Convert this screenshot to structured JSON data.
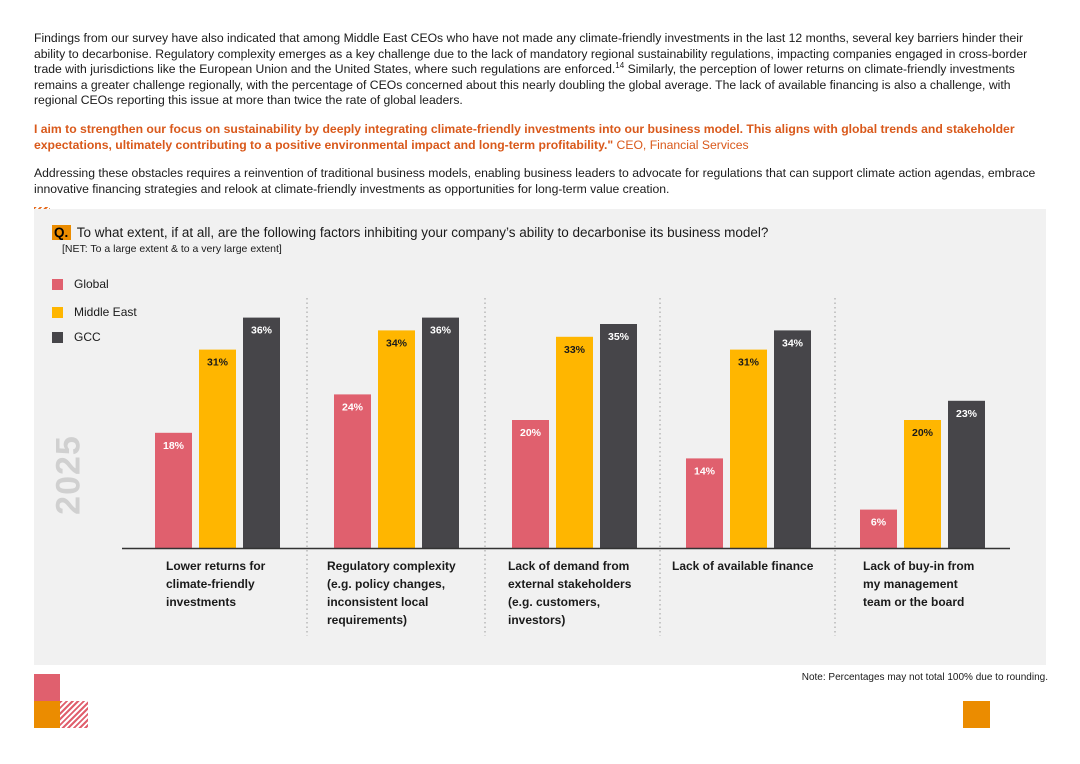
{
  "paragraph1": "Findings from our survey have also indicated that among Middle East CEOs who have not made any climate-friendly investments in the last 12 months, several key barriers hinder their ability to decarbonise. Regulatory complexity emerges as a key challenge due to the lack of mandatory regional sustainability regulations, impacting companies engaged in cross-border trade with jurisdictions like the European Union and the United States, where such regulations are enforced.",
  "footnote_ref": "14",
  "paragraph1_cont": " Similarly, the perception of lower returns on climate-friendly investments remains a greater challenge regionally, with the percentage of CEOs concerned about this nearly doubling the global average. The lack of available financing is also a challenge, with regional CEOs reporting this issue at more than twice the rate of global leaders.",
  "quote": {
    "text": "I aim to strengthen our focus on sustainability by deeply integrating climate-friendly investments into our business model. This aligns with global trends and stakeholder expectations, ultimately contributing to a positive environmental impact and long-term profitability.\"",
    "attribution": " CEO, Financial Services"
  },
  "paragraph2": "Addressing these obstacles requires a reinvention of traditional business models, enabling business leaders to advocate for regulations that can support climate action agendas, embrace innovative financing strategies and relook at climate-friendly investments as opportunities for long-term value creation.",
  "question": {
    "prefix": "Q.",
    "text": " To what extent, if at all, are the following factors inhibiting your company’s ability to decarbonise its business model?",
    "subtitle": "[NET: To a large extent & to a very large extent]"
  },
  "year_watermark": "2025",
  "note": "Note: Percentages may not total 100% due to rounding.",
  "colors": {
    "global": "#e0606e",
    "middle_east": "#ffb600",
    "gcc": "#464549",
    "accent": "#eb8c00",
    "quote": "#d9591b"
  },
  "chart_data": {
    "type": "bar",
    "title": "To what extent, if at all, are the following factors inhibiting your company’s ability to decarbonise its business model?",
    "subtitle": "[NET: To a large extent & to a very large extent]",
    "unit": "%",
    "ylim": [
      0,
      36
    ],
    "legend_position": "top-left",
    "categories": [
      [
        "Lower returns for",
        "climate-friendly",
        "investments"
      ],
      [
        "Regulatory complexity",
        "(e.g. policy changes,",
        "inconsistent local",
        "requirements)"
      ],
      [
        "Lack of demand from",
        "external stakeholders",
        "(e.g. customers,",
        "investors)"
      ],
      [
        "Lack of available finance"
      ],
      [
        "Lack of buy-in from",
        "my management",
        "team or the board"
      ]
    ],
    "series": [
      {
        "name": "Global",
        "color": "#e0606e",
        "label_color": "#ffffff",
        "values": [
          18,
          24,
          20,
          14,
          6
        ]
      },
      {
        "name": "Middle East",
        "color": "#ffb600",
        "label_color": "#1a1a1a",
        "values": [
          31,
          34,
          33,
          31,
          20
        ]
      },
      {
        "name": "GCC",
        "color": "#464549",
        "label_color": "#ffffff",
        "values": [
          36,
          36,
          35,
          34,
          23
        ]
      }
    ]
  }
}
